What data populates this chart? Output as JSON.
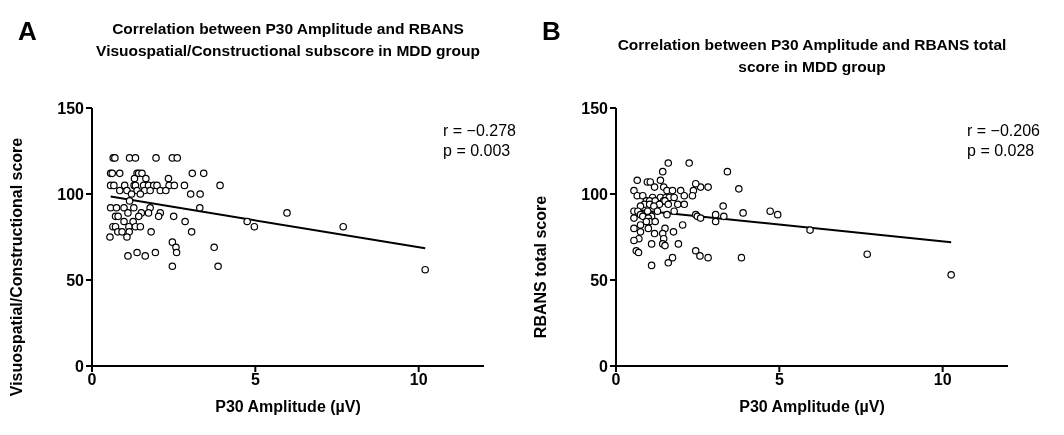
{
  "chart_data": [
    {
      "type": "scatter",
      "title": "Correlation between P30 Amplitude and RBANS Visuospatial/Constructional subscore in MDD group",
      "xlabel": "P30 Amplitude (µV)",
      "ylabel": "Visuospatial/Constructional score",
      "annotations": [
        "A",
        "r = −0.278",
        "p = 0.003"
      ],
      "xlim": [
        0,
        12
      ],
      "xticks": [
        0,
        5,
        10
      ],
      "ylim": [
        0,
        150
      ],
      "yticks": [
        0,
        50,
        100,
        150
      ],
      "series": [
        {
          "type": "scatter",
          "color": "#000000",
          "marker": "circle",
          "x": [
            0.65,
            0.7,
            1.15,
            1.33,
            1.96,
            2.46,
            2.61,
            0.57,
            0.62,
            0.85,
            1.38,
            1.43,
            1.53,
            3.07,
            3.42,
            0.57,
            0.67,
            1.0,
            1.29,
            1.33,
            1.58,
            1.73,
            1.89,
            1.99,
            2.36,
            2.52,
            2.83,
            3.92,
            1.3,
            1.65,
            2.34,
            0.85,
            1.07,
            1.38,
            1.61,
            1.78,
            2.09,
            2.26,
            1.21,
            1.48,
            3.02,
            3.31,
            1.15,
            0.57,
            0.75,
            0.98,
            1.28,
            1.78,
            3.3,
            1.1,
            1.51,
            1.73,
            2.09,
            5.97,
            0.72,
            0.8,
            1.43,
            2.04,
            2.5,
            0.98,
            1.26,
            2.85,
            4.75,
            0.64,
            0.72,
            1.13,
            1.33,
            1.48,
            4.97,
            0.79,
            0.92,
            1.14,
            1.81,
            3.05,
            0.55,
            1.07,
            2.46,
            2.57,
            3.74,
            1.38,
            1.94,
            2.59,
            1.1,
            1.63,
            2.46,
            3.86,
            7.69,
            10.2
          ],
          "values": [
            121,
            121,
            121,
            121,
            121,
            121,
            121,
            112,
            112,
            112,
            112,
            112,
            112,
            112,
            112,
            105,
            105,
            105,
            105,
            105,
            105,
            105,
            105,
            105,
            105,
            105,
            105,
            105,
            109,
            109,
            109,
            102,
            102,
            102,
            102,
            102,
            102,
            102,
            100,
            100,
            100,
            100,
            96,
            92,
            92,
            92,
            92,
            92,
            92,
            89,
            89,
            89,
            89,
            89,
            87,
            87,
            87,
            87,
            87,
            84,
            84,
            84,
            84,
            81,
            81,
            81,
            81,
            81,
            81,
            78,
            78,
            78,
            78,
            78,
            75,
            75,
            72,
            69,
            69,
            66,
            66,
            66,
            64,
            64,
            58,
            58,
            81,
            56
          ]
        },
        {
          "type": "line",
          "color": "#000000",
          "x": [
            0.57,
            10.2
          ],
          "values": [
            98.5,
            68.4
          ]
        }
      ]
    },
    {
      "type": "scatter",
      "title": "Correlation between P30 Amplitude and RBANS total score in MDD group",
      "xlabel": "P30 Amplitude (µV)",
      "ylabel": "RBANS total score",
      "annotations": [
        "B",
        "r = −0.206",
        "p = 0.028"
      ],
      "xlim": [
        0,
        12
      ],
      "xticks": [
        0,
        5,
        10
      ],
      "ylim": [
        0,
        150
      ],
      "yticks": [
        0,
        50,
        100,
        150
      ],
      "series": [
        {
          "type": "scatter",
          "color": "#000000",
          "marker": "circle",
          "x": [
            1.6,
            2.24,
            1.43,
            3.41,
            0.65,
            1.36,
            0.96,
            1.05,
            1.18,
            1.46,
            2.59,
            2.82,
            2.44,
            3.76,
            0.55,
            1.56,
            1.73,
            1.98,
            2.37,
            0.65,
            0.82,
            2.09,
            2.34,
            1.12,
            1.36,
            1.53,
            1.63,
            1.78,
            0.93,
            1.03,
            1.2,
            1.46,
            1.5,
            0.87,
            1.03,
            1.33,
            1.6,
            1.89,
            2.09,
            0.75,
            1.16,
            3.28,
            0.55,
            0.67,
            0.97,
            1.27,
            1.78,
            4.72,
            3.89,
            4.95,
            0.75,
            1.56,
            2.44,
            3.05,
            0.82,
            1.09,
            2.49,
            3.3,
            0.55,
            0.99,
            2.59,
            1.03,
            1.2,
            3.05,
            0.93,
            0.75,
            2.04,
            0.55,
            0.99,
            1.5,
            5.94,
            0.75,
            1.76,
            1.18,
            1.43,
            0.7,
            1.46,
            0.55,
            1.09,
            1.43,
            1.91,
            1.5,
            0.62,
            2.44,
            0.69,
            2.57,
            1.73,
            2.82,
            3.84,
            1.6,
            1.09,
            7.69,
            10.26
          ],
          "values": [
            118,
            118,
            113,
            113,
            108,
            108,
            107,
            107,
            104,
            104,
            104,
            104,
            106,
            103,
            102,
            102,
            102,
            102,
            102,
            99,
            99,
            99,
            99,
            98,
            98,
            98,
            98,
            98,
            96,
            96,
            96,
            96,
            96,
            94,
            94,
            94,
            94,
            94,
            94,
            93,
            93,
            93,
            90,
            90,
            90,
            90,
            90,
            90,
            89,
            88,
            88,
            88,
            88,
            88,
            87,
            87,
            87,
            87,
            86,
            86,
            86,
            84,
            84,
            84,
            84,
            82,
            82,
            80,
            80,
            80,
            79,
            78,
            78,
            77,
            77,
            74,
            74,
            73,
            71,
            71,
            71,
            70,
            67,
            67,
            66,
            64,
            63,
            63,
            63,
            60,
            58.5,
            65,
            53
          ]
        },
        {
          "type": "line",
          "color": "#000000",
          "x": [
            0.55,
            10.26
          ],
          "values": [
            90.9,
            72
          ]
        }
      ]
    }
  ]
}
